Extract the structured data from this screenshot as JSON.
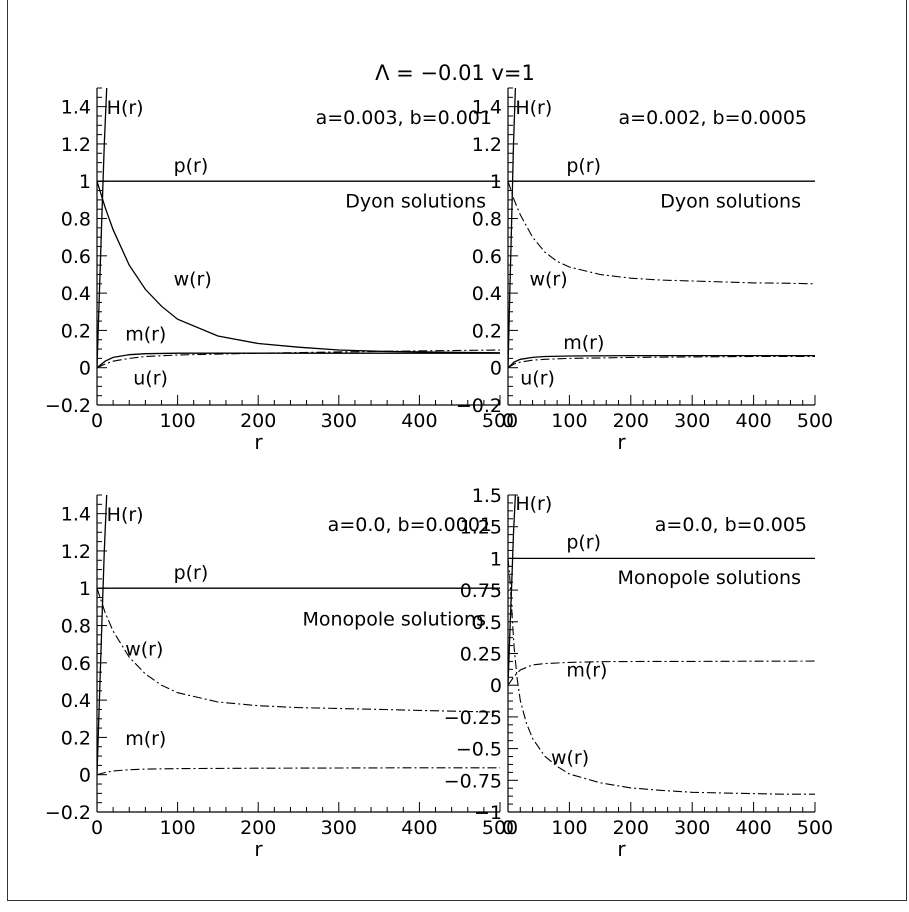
{
  "title": "Λ = −0.01 v=1",
  "chart_data": [
    {
      "type": "line",
      "params": "a=0.003, b=0.001",
      "note": "Dyon solutions",
      "xlabel": "r",
      "xlim": [
        0,
        500
      ],
      "ylim": [
        -0.2,
        1.5
      ],
      "xticks": [
        0,
        100,
        200,
        300,
        400,
        500
      ],
      "xticklabels": [
        "0",
        "100",
        "200",
        "300",
        "400",
        "500"
      ],
      "yticks": [
        -0.2,
        0,
        0.2,
        0.4,
        0.6,
        0.8,
        1,
        1.2,
        1.4
      ],
      "yticklabels": [
        "−0.2",
        "0",
        "0.2",
        "0.4",
        "0.6",
        "0.8",
        "1",
        "1.2",
        "1.4"
      ],
      "series": [
        {
          "name": "H(r)",
          "style": "solid",
          "x": [
            0,
            3,
            6,
            9,
            12
          ],
          "y": [
            0,
            0.4,
            0.8,
            1.2,
            1.5
          ]
        },
        {
          "name": "p(r)",
          "style": "solid",
          "x": [
            0,
            100,
            200,
            300,
            400,
            500
          ],
          "y": [
            1,
            1,
            1,
            1,
            1,
            1
          ]
        },
        {
          "name": "w(r)",
          "style": "solid",
          "x": [
            0,
            10,
            20,
            40,
            60,
            80,
            100,
            150,
            200,
            250,
            300,
            350,
            400,
            450,
            500
          ],
          "y": [
            1.0,
            0.86,
            0.74,
            0.55,
            0.42,
            0.33,
            0.26,
            0.17,
            0.13,
            0.11,
            0.095,
            0.088,
            0.085,
            0.082,
            0.08
          ]
        },
        {
          "name": "m(r)",
          "style": "solid",
          "x": [
            0,
            10,
            20,
            40,
            60,
            100,
            200,
            300,
            400,
            500
          ],
          "y": [
            0,
            0.035,
            0.055,
            0.07,
            0.075,
            0.078,
            0.078,
            0.078,
            0.078,
            0.078
          ]
        },
        {
          "name": "u(r)",
          "style": "dashdot",
          "x": [
            0,
            10,
            20,
            40,
            60,
            100,
            200,
            300,
            400,
            500
          ],
          "y": [
            0,
            0.02,
            0.035,
            0.05,
            0.06,
            0.068,
            0.078,
            0.085,
            0.09,
            0.095
          ]
        }
      ],
      "annotations": [
        {
          "text": "H(r)",
          "x": 12,
          "y": 1.36
        },
        {
          "text": "p(r)",
          "x": 95,
          "y": 1.05
        },
        {
          "text": "w(r)",
          "x": 95,
          "y": 0.44
        },
        {
          "text": "m(r)",
          "x": 35,
          "y": 0.145
        },
        {
          "text": "u(r)",
          "x": 45,
          "y": -0.09
        }
      ]
    },
    {
      "type": "line",
      "params": "a=0.002, b=0.0005",
      "note": "Dyon solutions",
      "xlabel": "r",
      "xlim": [
        0,
        500
      ],
      "ylim": [
        -0.2,
        1.5
      ],
      "xticks": [
        0,
        100,
        200,
        300,
        400,
        500
      ],
      "xticklabels": [
        "0",
        "100",
        "200",
        "300",
        "400",
        "500"
      ],
      "yticks": [
        -0.2,
        0,
        0.2,
        0.4,
        0.6,
        0.8,
        1,
        1.2,
        1.4
      ],
      "yticklabels": [
        "−0.2",
        "0",
        "0.2",
        "0.4",
        "0.6",
        "0.8",
        "1",
        "1.2",
        "1.4"
      ],
      "series": [
        {
          "name": "H(r)",
          "style": "solid",
          "x": [
            0,
            3,
            6,
            9,
            12
          ],
          "y": [
            0,
            0.4,
            0.8,
            1.2,
            1.5
          ]
        },
        {
          "name": "p(r)",
          "style": "solid",
          "x": [
            0,
            100,
            200,
            300,
            400,
            500
          ],
          "y": [
            1,
            1,
            1,
            1,
            1,
            1
          ]
        },
        {
          "name": "w(r)",
          "style": "dashdot",
          "x": [
            0,
            10,
            20,
            40,
            60,
            80,
            100,
            150,
            200,
            250,
            300,
            350,
            400,
            450,
            500
          ],
          "y": [
            1.0,
            0.9,
            0.82,
            0.7,
            0.62,
            0.57,
            0.54,
            0.5,
            0.48,
            0.47,
            0.465,
            0.46,
            0.455,
            0.453,
            0.45
          ]
        },
        {
          "name": "m(r)",
          "style": "solid",
          "x": [
            0,
            10,
            20,
            40,
            60,
            100,
            200,
            300,
            400,
            500
          ],
          "y": [
            0,
            0.03,
            0.045,
            0.055,
            0.06,
            0.063,
            0.065,
            0.065,
            0.065,
            0.065
          ]
        },
        {
          "name": "u(r)",
          "style": "dashdot",
          "x": [
            0,
            10,
            20,
            40,
            60,
            100,
            200,
            300,
            400,
            500
          ],
          "y": [
            0,
            0.02,
            0.03,
            0.04,
            0.045,
            0.05,
            0.055,
            0.058,
            0.06,
            0.06
          ]
        }
      ],
      "annotations": [
        {
          "text": "H(r)",
          "x": 12,
          "y": 1.36
        },
        {
          "text": "p(r)",
          "x": 95,
          "y": 1.05
        },
        {
          "text": "w(r)",
          "x": 35,
          "y": 0.44
        },
        {
          "text": "m(r)",
          "x": 90,
          "y": 0.1
        },
        {
          "text": "u(r)",
          "x": 20,
          "y": -0.09
        }
      ]
    },
    {
      "type": "line",
      "params": "a=0.0, b=0.0001",
      "note": "Monopole solutions",
      "xlabel": "r",
      "xlim": [
        0,
        500
      ],
      "ylim": [
        -0.2,
        1.5
      ],
      "xticks": [
        0,
        100,
        200,
        300,
        400,
        500
      ],
      "xticklabels": [
        "0",
        "100",
        "200",
        "300",
        "400",
        "500"
      ],
      "yticks": [
        -0.2,
        0,
        0.2,
        0.4,
        0.6,
        0.8,
        1,
        1.2,
        1.4
      ],
      "yticklabels": [
        "−0.2",
        "0",
        "0.2",
        "0.4",
        "0.6",
        "0.8",
        "1",
        "1.2",
        "1.4"
      ],
      "series": [
        {
          "name": "H(r)",
          "style": "solid",
          "x": [
            0,
            3,
            6,
            9,
            12
          ],
          "y": [
            0,
            0.4,
            0.8,
            1.2,
            1.5
          ]
        },
        {
          "name": "p(r)",
          "style": "solid",
          "x": [
            0,
            100,
            200,
            300,
            400,
            500
          ],
          "y": [
            1,
            1,
            1,
            1,
            1,
            1
          ]
        },
        {
          "name": "w(r)",
          "style": "dashdot",
          "x": [
            0,
            10,
            20,
            40,
            60,
            80,
            100,
            150,
            200,
            250,
            300,
            350,
            400,
            450,
            500
          ],
          "y": [
            1.0,
            0.87,
            0.77,
            0.63,
            0.54,
            0.48,
            0.44,
            0.39,
            0.37,
            0.36,
            0.355,
            0.35,
            0.345,
            0.34,
            0.335
          ]
        },
        {
          "name": "m(r)",
          "style": "dashdot",
          "x": [
            0,
            10,
            20,
            40,
            60,
            100,
            200,
            300,
            400,
            500
          ],
          "y": [
            0,
            0.012,
            0.02,
            0.027,
            0.03,
            0.033,
            0.035,
            0.036,
            0.037,
            0.037
          ]
        }
      ],
      "annotations": [
        {
          "text": "H(r)",
          "x": 12,
          "y": 1.36
        },
        {
          "text": "p(r)",
          "x": 95,
          "y": 1.05
        },
        {
          "text": "w(r)",
          "x": 35,
          "y": 0.64
        },
        {
          "text": "m(r)",
          "x": 35,
          "y": 0.16
        }
      ]
    },
    {
      "type": "line",
      "params": "a=0.0, b=0.005",
      "note": "Monopole solutions",
      "xlabel": "r",
      "xlim": [
        0,
        500
      ],
      "ylim": [
        -1,
        1.5
      ],
      "xticks": [
        0,
        100,
        200,
        300,
        400,
        500
      ],
      "xticklabels": [
        "0",
        "100",
        "200",
        "300",
        "400",
        "500"
      ],
      "yticks": [
        -1,
        -0.75,
        -0.5,
        -0.25,
        0,
        0.25,
        0.5,
        0.75,
        1,
        1.25,
        1.5
      ],
      "yticklabels": [
        "−1",
        "−0.75",
        "−0.5",
        "−0.25",
        "0",
        "0.25",
        "0.5",
        "0.75",
        "1",
        "1.25",
        "1.5"
      ],
      "series": [
        {
          "name": "H(r)",
          "style": "solid",
          "x": [
            0,
            3,
            6,
            9,
            12
          ],
          "y": [
            0,
            0.4,
            0.8,
            1.2,
            1.5
          ]
        },
        {
          "name": "p(r)",
          "style": "solid",
          "x": [
            0,
            100,
            200,
            300,
            400,
            500
          ],
          "y": [
            1,
            1,
            1,
            1,
            1,
            1
          ]
        },
        {
          "name": "w(r)",
          "style": "dashdot",
          "x": [
            0,
            3,
            6,
            10,
            15,
            20,
            30,
            40,
            60,
            80,
            100,
            150,
            200,
            250,
            300,
            350,
            400,
            450,
            500
          ],
          "y": [
            1.0,
            0.85,
            0.6,
            0.3,
            0.05,
            -0.12,
            -0.3,
            -0.42,
            -0.56,
            -0.64,
            -0.7,
            -0.77,
            -0.81,
            -0.83,
            -0.845,
            -0.85,
            -0.855,
            -0.86,
            -0.86
          ]
        },
        {
          "name": "m(r)",
          "style": "dashdot",
          "x": [
            0,
            10,
            20,
            40,
            60,
            100,
            150,
            200,
            300,
            400,
            500
          ],
          "y": [
            0.0,
            0.07,
            0.12,
            0.16,
            0.17,
            0.18,
            0.185,
            0.187,
            0.188,
            0.189,
            0.19
          ]
        }
      ],
      "annotations": [
        {
          "text": "H(r)",
          "x": 12,
          "y": 1.38
        },
        {
          "text": "p(r)",
          "x": 95,
          "y": 1.08
        },
        {
          "text": "m(r)",
          "x": 95,
          "y": 0.07
        },
        {
          "text": "w(r)",
          "x": 70,
          "y": -0.62
        }
      ]
    }
  ]
}
